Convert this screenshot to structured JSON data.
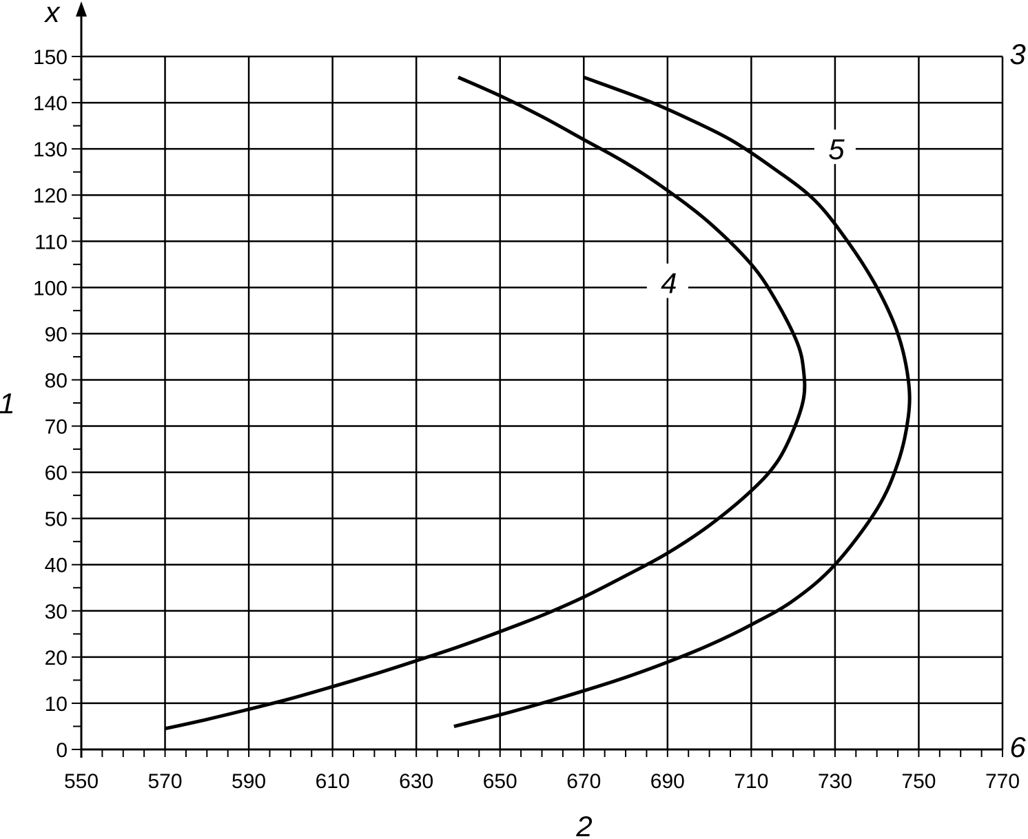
{
  "chart_data": {
    "type": "line",
    "x_axis": {
      "label": "2",
      "range": [
        550,
        770
      ],
      "ticks": [
        550,
        570,
        590,
        610,
        630,
        650,
        670,
        690,
        710,
        730,
        750,
        770
      ]
    },
    "y_axis": {
      "label": "x",
      "side_label": "1",
      "range": [
        0,
        150
      ],
      "ticks": [
        0,
        10,
        20,
        30,
        40,
        50,
        60,
        70,
        80,
        90,
        100,
        110,
        120,
        130,
        140,
        150
      ]
    },
    "grid": true,
    "corner_labels": {
      "top_right": "3",
      "bottom_right": "6"
    },
    "series": [
      {
        "label": "4",
        "label_at": [
          690,
          101
        ],
        "points": [
          [
            570,
            4.5
          ],
          [
            580,
            6.5
          ],
          [
            590,
            8.7
          ],
          [
            600,
            11
          ],
          [
            610,
            13.6
          ],
          [
            620,
            16.3
          ],
          [
            630,
            19.2
          ],
          [
            640,
            22.2
          ],
          [
            650,
            25.5
          ],
          [
            660,
            29
          ],
          [
            670,
            33
          ],
          [
            680,
            37.6
          ],
          [
            690,
            42.5
          ],
          [
            700,
            48.5
          ],
          [
            710,
            56
          ],
          [
            716,
            62
          ],
          [
            720,
            69
          ],
          [
            722.5,
            76
          ],
          [
            722.5,
            82
          ],
          [
            721,
            88
          ],
          [
            716,
            97
          ],
          [
            710,
            105
          ],
          [
            700,
            114
          ],
          [
            690,
            121
          ],
          [
            680,
            127
          ],
          [
            670,
            132
          ],
          [
            660,
            137
          ],
          [
            650,
            141.5
          ],
          [
            640,
            145.5
          ]
        ]
      },
      {
        "label": "5",
        "label_at": [
          730,
          130
        ],
        "points": [
          [
            639,
            5
          ],
          [
            650,
            7.5
          ],
          [
            660,
            10
          ],
          [
            670,
            12.7
          ],
          [
            680,
            15.6
          ],
          [
            690,
            18.9
          ],
          [
            700,
            22.6
          ],
          [
            710,
            27
          ],
          [
            720,
            32.2
          ],
          [
            730,
            40
          ],
          [
            740,
            52
          ],
          [
            745,
            62
          ],
          [
            747.5,
            72
          ],
          [
            747.5,
            80
          ],
          [
            745,
            90
          ],
          [
            740,
            100
          ],
          [
            733,
            110
          ],
          [
            725,
            119
          ],
          [
            715,
            126
          ],
          [
            705,
            132
          ],
          [
            695,
            136.5
          ],
          [
            685,
            140.5
          ],
          [
            670,
            145.5
          ]
        ]
      }
    ]
  }
}
